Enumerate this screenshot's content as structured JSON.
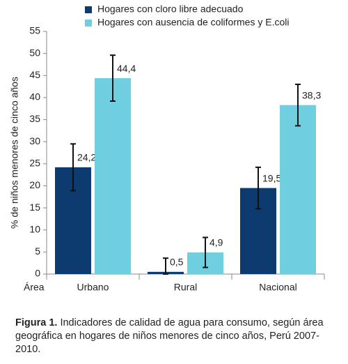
{
  "chart_data": {
    "type": "bar",
    "y_label": "% de niños menores de cinco años",
    "x_label": "Área",
    "categories": [
      "Urbano",
      "Rural",
      "Nacional"
    ],
    "series": [
      {
        "name": "Hogares con cloro libre adecuado",
        "color": "#0d3b70",
        "values": [
          24.2,
          0.5,
          19.5
        ],
        "value_labels": [
          "24,2",
          "0,5",
          "19,5"
        ],
        "errors": [
          5.3,
          3.1,
          4.7
        ]
      },
      {
        "name": "Hogares con ausencia de coliformes y E.coli",
        "color": "#6fcfe0",
        "values": [
          44.4,
          4.9,
          38.3
        ],
        "value_labels": [
          "44,4",
          "4,9",
          "38,3"
        ],
        "errors": [
          5.2,
          3.4,
          4.7
        ]
      }
    ],
    "ylim": [
      0,
      55
    ],
    "yticks": [
      0,
      5,
      10,
      15,
      20,
      25,
      30,
      35,
      40,
      45,
      50,
      55
    ]
  },
  "caption": {
    "label": "Figura 1.",
    "text": "Indicadores de calidad de agua para consumo, según área geográfica en hogares de niños menores de cinco años, Perú 2007-2010."
  }
}
